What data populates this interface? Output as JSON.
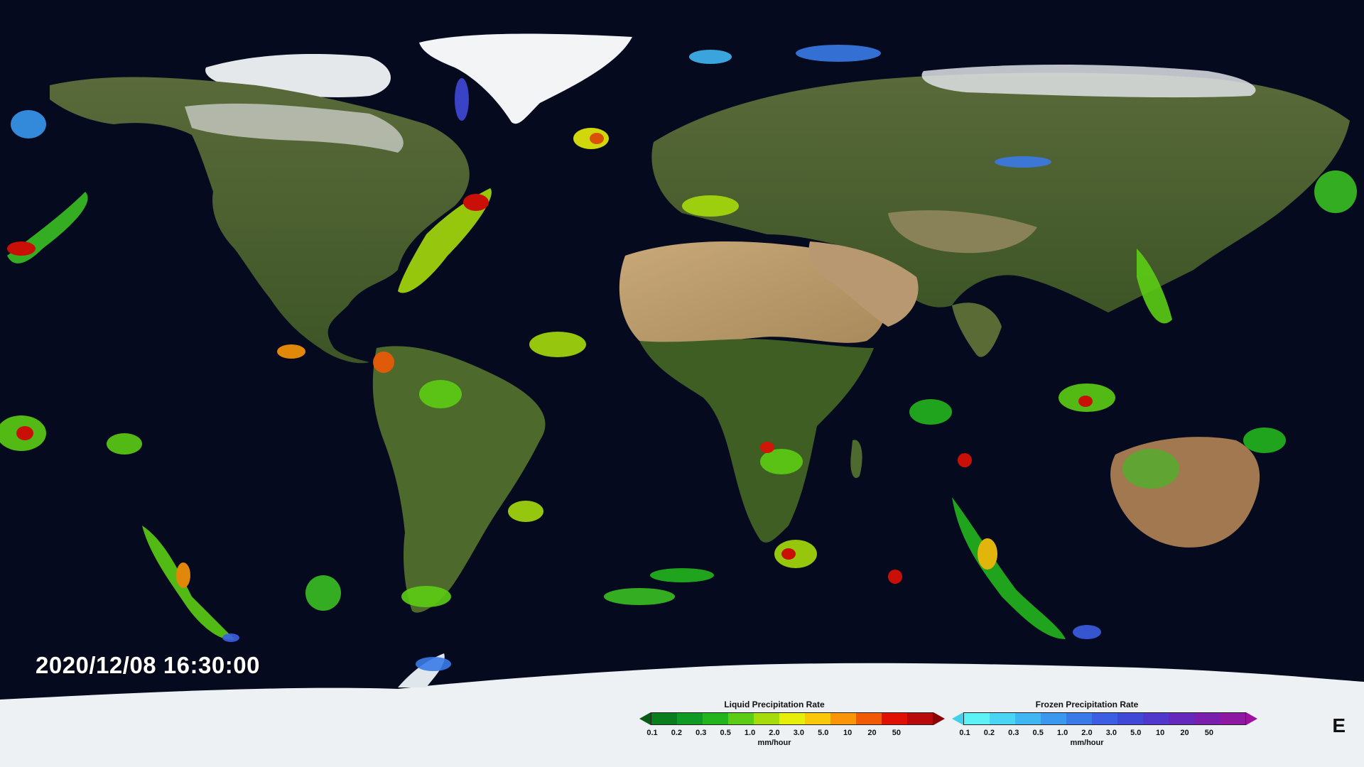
{
  "timestamp": "2020/12/08 16:30:00",
  "corner_mark": "E",
  "liquid_legend": {
    "title": "Liquid Precipitation Rate",
    "units": "mm/hour",
    "ticks": [
      "0.1",
      "0.2",
      "0.3",
      "0.5",
      "1.0",
      "2.0",
      "3.0",
      "5.0",
      "10",
      "20",
      "50"
    ],
    "colors": [
      "#0a7d1e",
      "#0f9a23",
      "#23b51e",
      "#5ccd14",
      "#a6dc0c",
      "#e6ee0a",
      "#f9c80a",
      "#f99508",
      "#f05a06",
      "#e01004",
      "#b80a0a"
    ],
    "under_color": "#0a5a14",
    "over_color": "#8a0606"
  },
  "frozen_legend": {
    "title": "Frozen Precipitation Rate",
    "units": "mm/hour",
    "ticks": [
      "0.1",
      "0.2",
      "0.3",
      "0.5",
      "1.0",
      "2.0",
      "3.0",
      "5.0",
      "10",
      "20",
      "50"
    ],
    "colors": [
      "#5cf2f6",
      "#4cd4f4",
      "#40b6f2",
      "#3a98ee",
      "#3a7ae8",
      "#3c5ee2",
      "#4048d8",
      "#5038cc",
      "#6428bc",
      "#7a1eae",
      "#8e18a2"
    ],
    "under_color": "#40d0ea",
    "over_color": "#a010a0"
  }
}
